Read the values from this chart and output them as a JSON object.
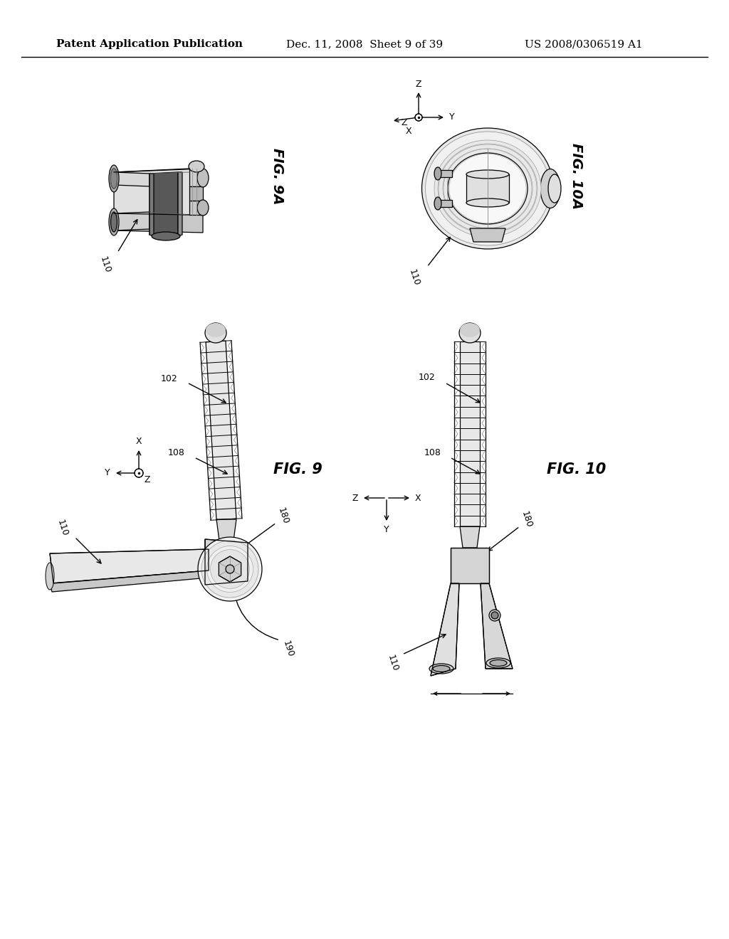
{
  "title_left": "Patent Application Publication",
  "title_middle": "Dec. 11, 2008  Sheet 9 of 39",
  "title_right": "US 2008/0306519 A1",
  "background_color": "#ffffff",
  "fig_labels": {
    "fig9A": "FIG. 9A",
    "fig10A": "FIG. 10A",
    "fig9": "FIG. 9",
    "fig10": "FIG. 10"
  },
  "line_color": "#000000",
  "lw": 0.9
}
